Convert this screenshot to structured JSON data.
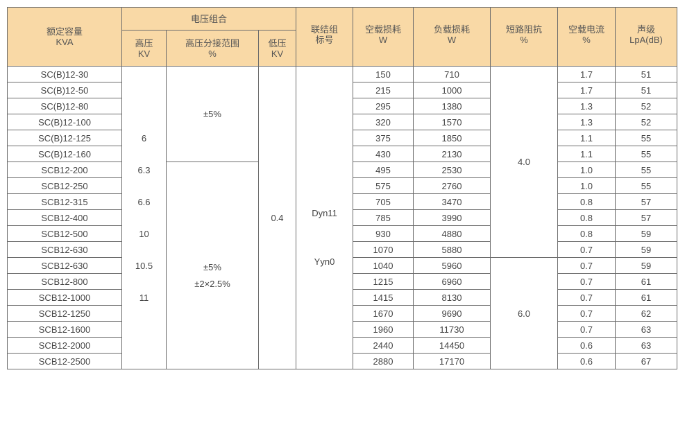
{
  "header": {
    "capacity": "额定容量",
    "capacity_unit": "KVA",
    "voltage_group": "电压组合",
    "hv": "高压",
    "hv_unit": "KV",
    "tap": "高压分接范围",
    "tap_unit": "%",
    "lv": "低压",
    "lv_unit": "KV",
    "vector": "联结组",
    "vector2": "标号",
    "noload": "空载损耗",
    "noload_unit": "W",
    "load": "负载损耗",
    "load_unit": "W",
    "impedance": "短路阻抗",
    "impedance_unit": "%",
    "current": "空载电流",
    "current_unit": "%",
    "noise": "声级",
    "noise_unit": "LpA(dB)"
  },
  "hv_values": [
    "6",
    "6.3",
    "6.6",
    "10",
    "10.5",
    "11"
  ],
  "tap_a": "±5%",
  "tap_b1": "±5%",
  "tap_b2": "±2×2.5%",
  "lv_value": "0.4",
  "vector_values": [
    "Dyn11",
    "Yyn0"
  ],
  "impedance_a": "4.0",
  "impedance_b": "6.0",
  "rows": [
    [
      "SC(B)12-30",
      "150",
      "710",
      "1.7",
      "51"
    ],
    [
      "SC(B)12-50",
      "215",
      "1000",
      "1.7",
      "51"
    ],
    [
      "SC(B)12-80",
      "295",
      "1380",
      "1.3",
      "52"
    ],
    [
      "SC(B)12-100",
      "320",
      "1570",
      "1.3",
      "52"
    ],
    [
      "SC(B)12-125",
      "375",
      "1850",
      "1.1",
      "55"
    ],
    [
      "SC(B)12-160",
      "430",
      "2130",
      "1.1",
      "55"
    ],
    [
      "SCB12-200",
      "495",
      "2530",
      "1.0",
      "55"
    ],
    [
      "SCB12-250",
      "575",
      "2760",
      "1.0",
      "55"
    ],
    [
      "SCB12-315",
      "705",
      "3470",
      "0.8",
      "57"
    ],
    [
      "SCB12-400",
      "785",
      "3990",
      "0.8",
      "57"
    ],
    [
      "SCB12-500",
      "930",
      "4880",
      "0.8",
      "59"
    ],
    [
      "SCB12-630",
      "1070",
      "5880",
      "0.7",
      "59"
    ],
    [
      "SCB12-630",
      "1040",
      "5960",
      "0.7",
      "59"
    ],
    [
      "SCB12-800",
      "1215",
      "6960",
      "0.7",
      "61"
    ],
    [
      "SCB12-1000",
      "1415",
      "8130",
      "0.7",
      "61"
    ],
    [
      "SCB12-1250",
      "1670",
      "9690",
      "0.7",
      "62"
    ],
    [
      "SCB12-1600",
      "1960",
      "11730",
      "0.7",
      "63"
    ],
    [
      "SCB12-2000",
      "2440",
      "14450",
      "0.6",
      "63"
    ],
    [
      "SCB12-2500",
      "2880",
      "17170",
      "0.6",
      "67"
    ]
  ]
}
